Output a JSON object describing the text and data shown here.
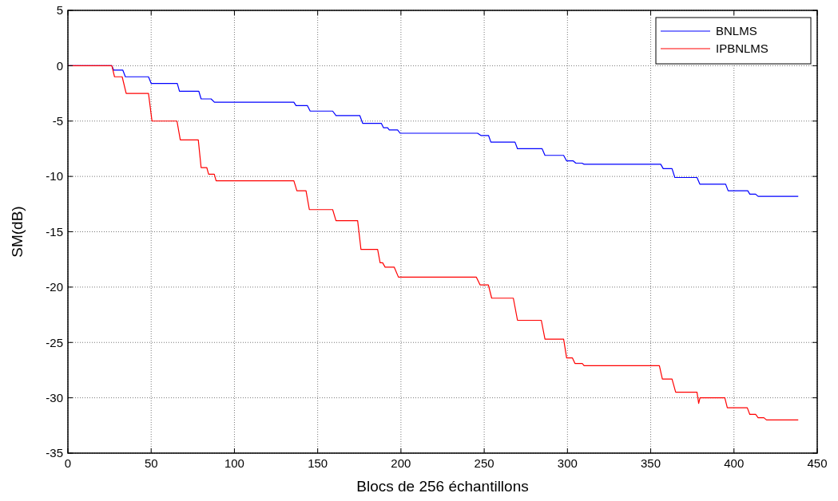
{
  "chart_data": {
    "type": "line",
    "xlabel": "Blocs de 256 échantillons",
    "ylabel": "SM(dB)",
    "xlim": [
      0,
      450
    ],
    "xticks": [
      0,
      50,
      100,
      150,
      200,
      250,
      300,
      350,
      400,
      450
    ],
    "ylim": [
      -35,
      5
    ],
    "yticks": [
      -35,
      -30,
      -25,
      -20,
      -15,
      -10,
      -5,
      0,
      5
    ],
    "grid": true,
    "legend": "top right",
    "line_style": "solid",
    "series": [
      {
        "name": "BNLMS",
        "color": "#0000ff",
        "x": [
          0,
          26.4,
          27.5,
          33,
          34.5,
          48.4,
          50,
          65.7,
          67,
          78.6,
          80,
          86,
          88,
          135.7,
          137,
          143.8,
          145.5,
          159,
          161,
          175.3,
          177,
          188.2,
          189.5,
          192,
          193,
          198,
          199.5,
          246,
          248,
          252.6,
          254,
          268.5,
          270,
          284.8,
          286.5,
          297.7,
          299.5,
          303.5,
          305,
          308.7,
          310,
          356,
          357.5,
          362.8,
          364.5,
          377.8,
          379.5,
          395,
          396.5,
          408.3,
          409.5,
          413,
          414.5,
          438.6
        ],
        "values": [
          0,
          0,
          -0.4,
          -0.4,
          -1,
          -1,
          -1.6,
          -1.6,
          -2.3,
          -2.3,
          -3,
          -3,
          -3.3,
          -3.3,
          -3.6,
          -3.6,
          -4.1,
          -4.1,
          -4.5,
          -4.5,
          -5.2,
          -5.2,
          -5.6,
          -5.6,
          -5.8,
          -5.8,
          -6.1,
          -6.1,
          -6.3,
          -6.3,
          -6.9,
          -6.9,
          -7.5,
          -7.5,
          -8.1,
          -8.1,
          -8.6,
          -8.6,
          -8.8,
          -8.8,
          -8.9,
          -8.9,
          -9.3,
          -9.3,
          -10.1,
          -10.1,
          -10.7,
          -10.7,
          -11.3,
          -11.3,
          -11.6,
          -11.6,
          -11.8,
          -11.8
        ]
      },
      {
        "name": "IPBNLMS",
        "color": "#ff0000",
        "x": [
          0,
          26.4,
          28,
          32.6,
          35,
          48.4,
          50.5,
          65.5,
          67.5,
          78.3,
          80,
          83.4,
          84.5,
          87.9,
          89,
          135.7,
          137.5,
          143,
          145,
          159,
          161,
          174,
          176,
          186,
          187.5,
          189,
          190.5,
          196,
          198.5,
          245.3,
          247.5,
          252.5,
          254.5,
          267.5,
          270,
          284.3,
          286.5,
          297.7,
          299.5,
          303,
          304.5,
          308.9,
          310,
          355.2,
          357,
          362.8,
          365,
          377.8,
          378.8,
          379.6,
          394.5,
          396,
          408,
          409.5,
          413,
          414.5,
          418,
          419.5,
          438.6
        ],
        "values": [
          0,
          0,
          -1,
          -1,
          -2.5,
          -2.5,
          -5,
          -5,
          -6.7,
          -6.7,
          -9.2,
          -9.2,
          -9.8,
          -9.8,
          -10.4,
          -10.4,
          -11.3,
          -11.3,
          -13,
          -13,
          -14,
          -14,
          -16.6,
          -16.6,
          -17.8,
          -17.8,
          -18.2,
          -18.2,
          -19.1,
          -19.1,
          -19.8,
          -19.8,
          -21,
          -21,
          -23,
          -23,
          -24.7,
          -24.7,
          -26.4,
          -26.4,
          -26.9,
          -26.9,
          -27.1,
          -27.1,
          -28.3,
          -28.3,
          -29.5,
          -29.5,
          -30.5,
          -30,
          -30,
          -30.9,
          -30.9,
          -31.5,
          -31.5,
          -31.8,
          -31.8,
          -32,
          -32
        ]
      }
    ]
  }
}
